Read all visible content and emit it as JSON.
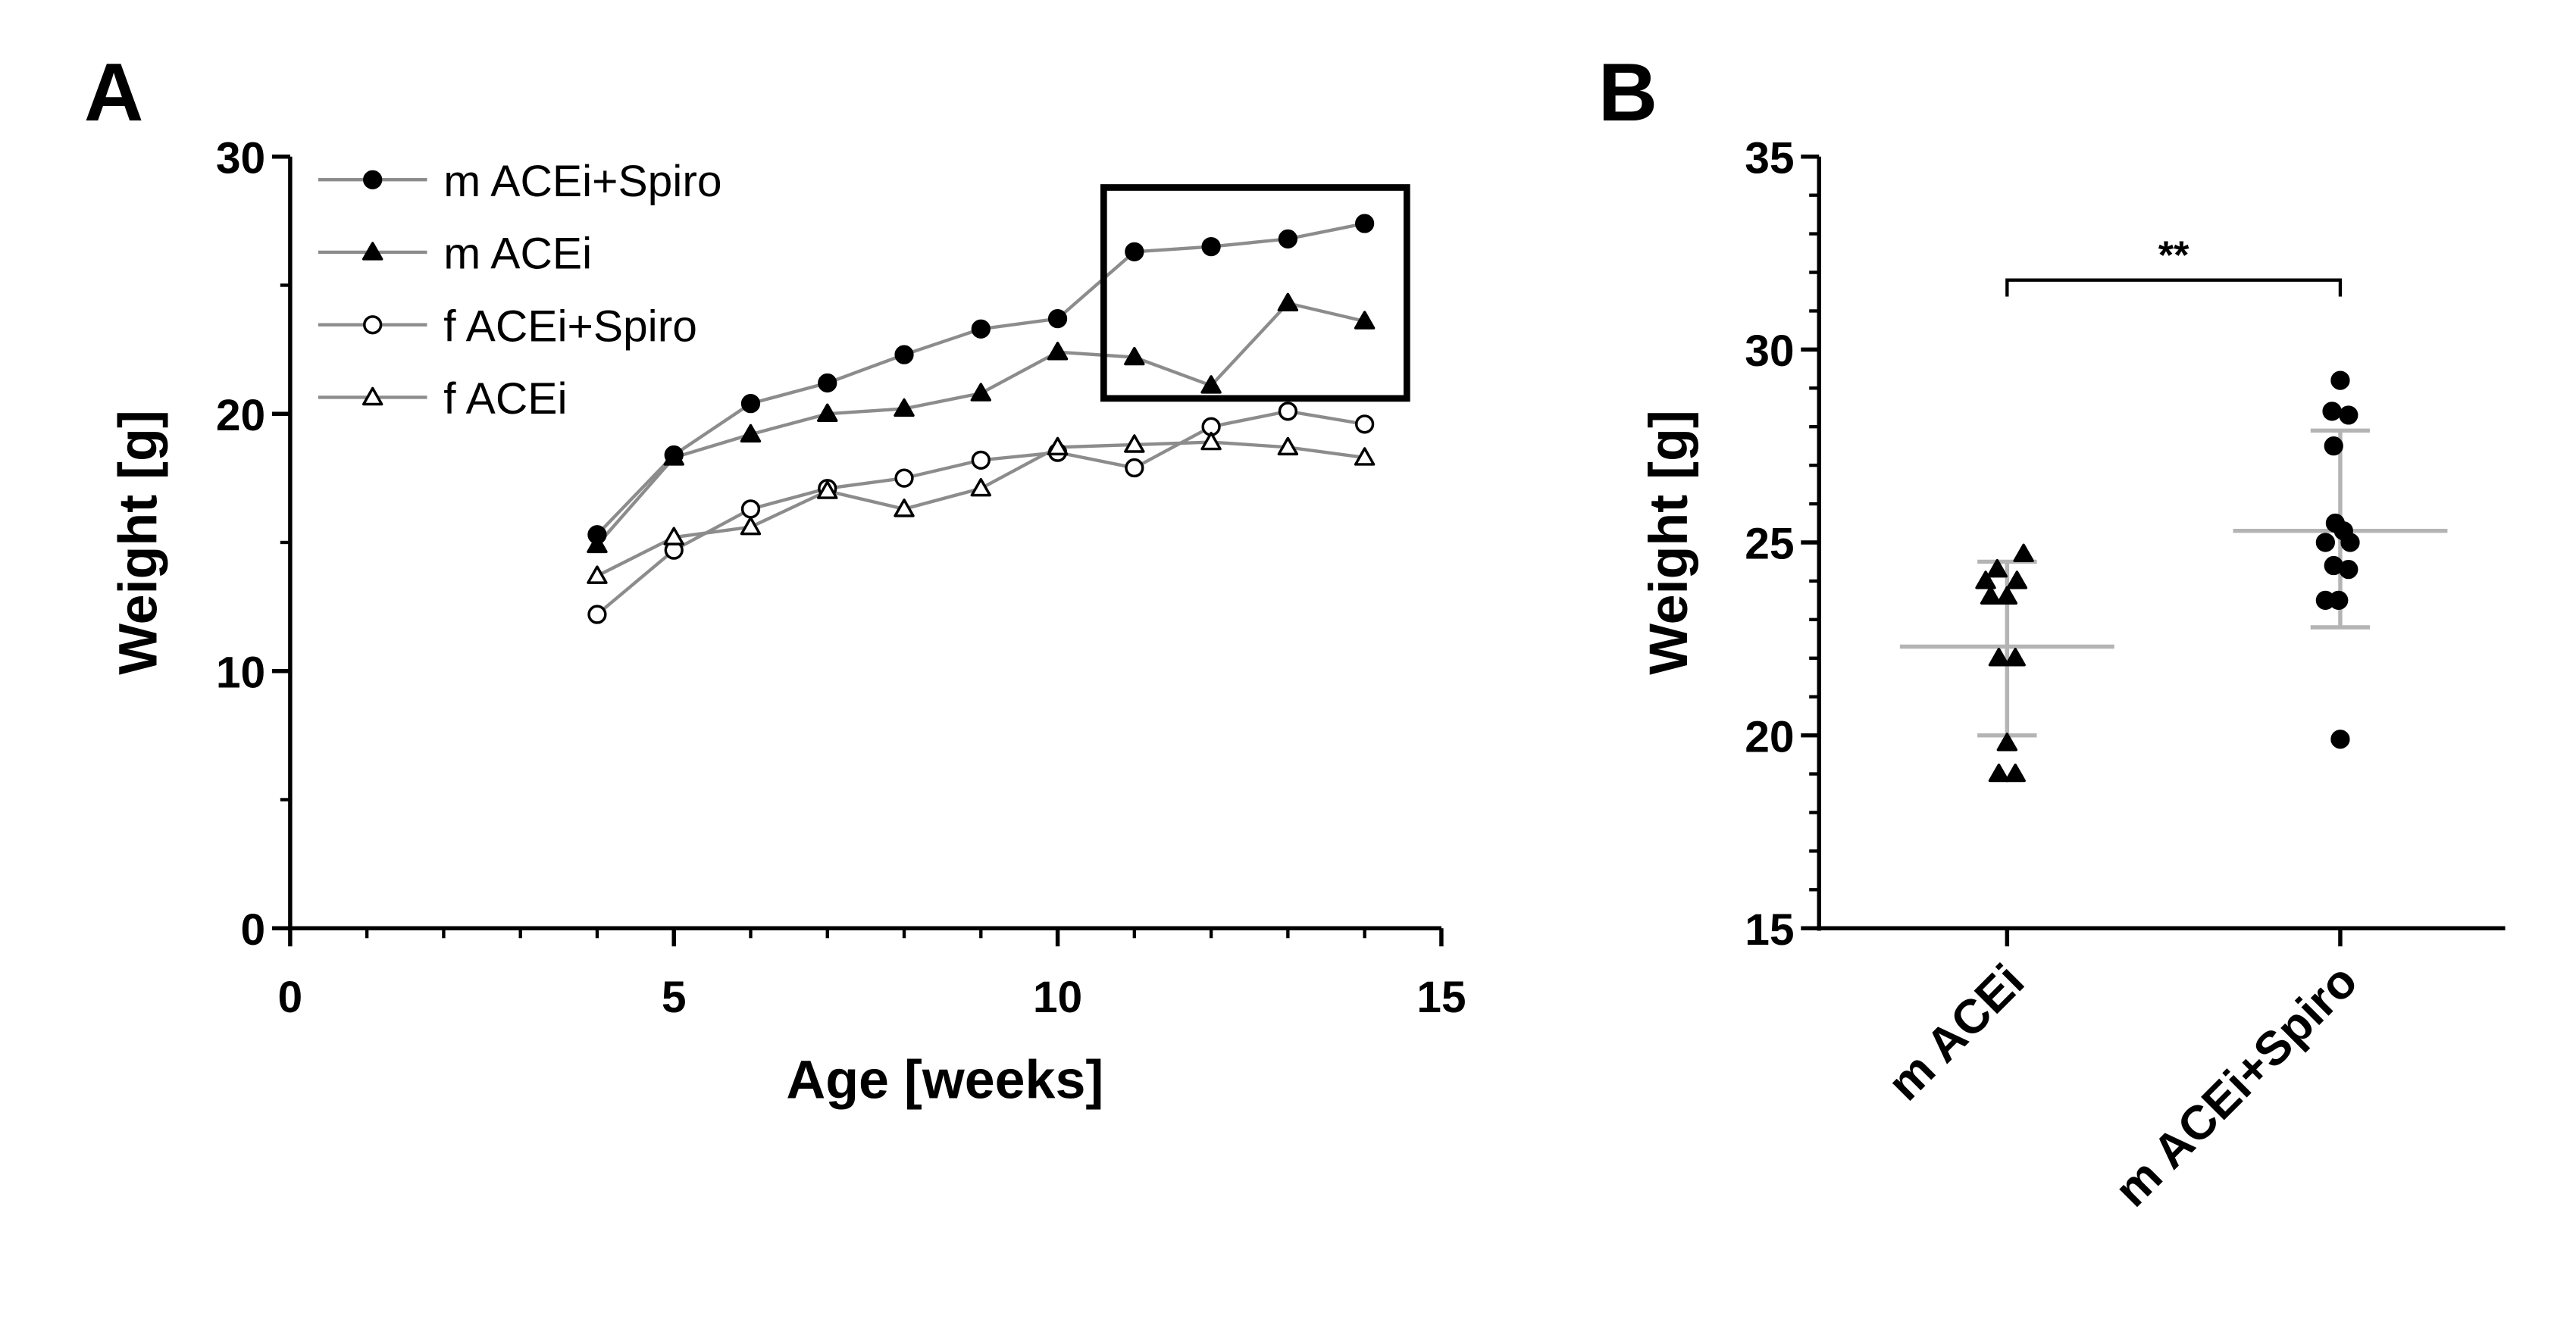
{
  "figure": {
    "colors": {
      "axis": "#000000",
      "series_line": "#8c8c8c",
      "marker": "#000000",
      "error_bar": "#b4b4b4"
    }
  },
  "chart_data": [
    {
      "panel_label": "A",
      "type": "line",
      "title": "",
      "xlabel": "Age [weeks]",
      "ylabel": "Weight [g]",
      "xlim": [
        0,
        15
      ],
      "ylim": [
        0,
        30
      ],
      "x_ticks": [
        0,
        5,
        10,
        15
      ],
      "x_tick_labels": [
        "0",
        "5",
        "10",
        "15"
      ],
      "x_minor_step": 1,
      "y_ticks": [
        0,
        10,
        20,
        30
      ],
      "y_tick_labels": [
        "0",
        "10",
        "20",
        "30"
      ],
      "grid": false,
      "legend_position": "top-left",
      "series": [
        {
          "name": "m ACEi+Spiro",
          "marker": "filled-circle",
          "x": [
            4,
            5,
            6,
            7,
            8,
            9,
            10,
            11,
            12,
            13,
            14
          ],
          "values": [
            15.3,
            18.4,
            20.4,
            21.2,
            22.3,
            23.3,
            23.7,
            26.3,
            26.5,
            26.8,
            27.4
          ]
        },
        {
          "name": "m ACEi",
          "marker": "filled-triangle",
          "x": [
            4,
            5,
            6,
            7,
            8,
            9,
            10,
            11,
            12,
            13,
            14
          ],
          "values": [
            14.9,
            18.3,
            19.2,
            20.0,
            20.2,
            20.8,
            22.4,
            22.2,
            21.1,
            24.3,
            23.6
          ]
        },
        {
          "name": "f  ACEi+Spiro",
          "marker": "open-circle",
          "x": [
            4,
            5,
            6,
            7,
            8,
            9,
            10,
            11,
            12,
            13,
            14
          ],
          "values": [
            12.2,
            14.7,
            16.3,
            17.1,
            17.5,
            18.2,
            18.5,
            17.9,
            19.5,
            20.1,
            19.6
          ]
        },
        {
          "name": "f  ACEi",
          "marker": "open-triangle",
          "x": [
            4,
            5,
            6,
            7,
            8,
            9,
            10,
            11,
            12,
            13,
            14
          ],
          "values": [
            13.7,
            15.2,
            15.6,
            17.0,
            16.3,
            17.1,
            18.7,
            18.8,
            18.9,
            18.7,
            18.3
          ]
        }
      ],
      "annotations": [
        {
          "type": "highlight-box",
          "x_range": [
            10.6,
            14.55
          ],
          "y_range": [
            20.6,
            28.8
          ]
        }
      ]
    },
    {
      "panel_label": "B",
      "type": "scatter",
      "title": "",
      "xlabel": "",
      "ylabel": "Weight [g]",
      "ylim": [
        15,
        35
      ],
      "y_ticks": [
        15,
        20,
        25,
        30,
        35
      ],
      "y_tick_labels": [
        "15",
        "20",
        "25",
        "30",
        "35"
      ],
      "grid": false,
      "categories": [
        "m ACEi",
        "m ACEi+Spiro"
      ],
      "series": [
        {
          "name": "m ACEi",
          "marker": "filled-triangle",
          "points": [
            {
              "dx": 0.1,
              "value": 24.7
            },
            {
              "dx": -0.06,
              "value": 24.3
            },
            {
              "dx": -0.13,
              "value": 24.0
            },
            {
              "dx": 0.06,
              "value": 24.0
            },
            {
              "dx": -0.1,
              "value": 23.6
            },
            {
              "dx": 0.0,
              "value": 23.6
            },
            {
              "dx": -0.05,
              "value": 22.0
            },
            {
              "dx": 0.05,
              "value": 22.0
            },
            {
              "dx": 0.0,
              "value": 19.8
            },
            {
              "dx": -0.05,
              "value": 19.0
            },
            {
              "dx": 0.05,
              "value": 19.0
            }
          ],
          "mean": 22.3,
          "sd_low": 20.0,
          "sd_high": 24.5
        },
        {
          "name": "m ACEi+Spiro",
          "marker": "filled-circle",
          "points": [
            {
              "dx": 0.0,
              "value": 29.2
            },
            {
              "dx": -0.05,
              "value": 28.4
            },
            {
              "dx": 0.05,
              "value": 28.3
            },
            {
              "dx": -0.04,
              "value": 27.5
            },
            {
              "dx": -0.03,
              "value": 25.5
            },
            {
              "dx": 0.02,
              "value": 25.3
            },
            {
              "dx": -0.09,
              "value": 25.0
            },
            {
              "dx": 0.06,
              "value": 25.0
            },
            {
              "dx": -0.04,
              "value": 24.4
            },
            {
              "dx": 0.05,
              "value": 24.3
            },
            {
              "dx": -0.09,
              "value": 23.5
            },
            {
              "dx": -0.01,
              "value": 23.5
            },
            {
              "dx": 0.0,
              "value": 19.9
            }
          ],
          "mean": 25.3,
          "sd_low": 22.8,
          "sd_high": 27.9
        }
      ],
      "annotations": [
        {
          "type": "significance-bracket",
          "from": "m ACEi",
          "to": "m ACEi+Spiro",
          "label": "**",
          "value": 31.8
        }
      ]
    }
  ]
}
